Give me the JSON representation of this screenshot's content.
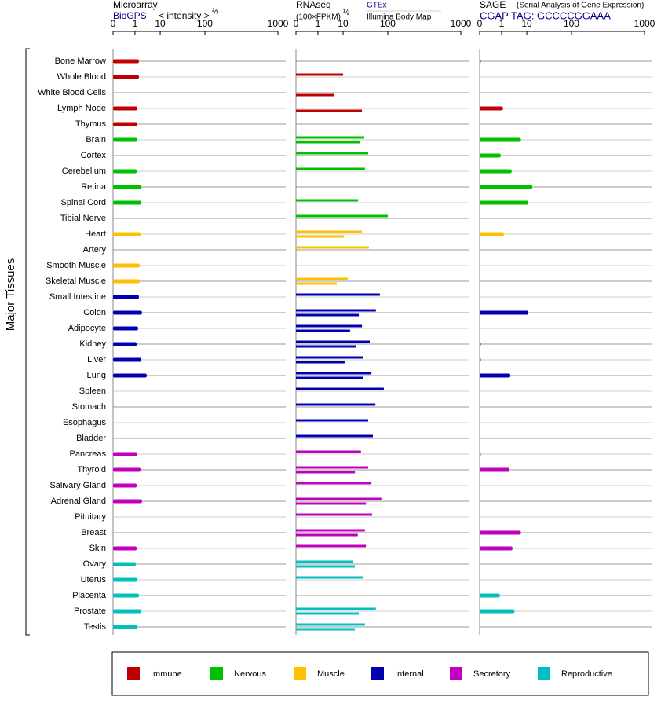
{
  "chart_data": [
    {
      "type": "bar",
      "title": "Microarray",
      "subtitle": "BioGPS",
      "axis_label": "< intensity >",
      "axis_exponent": "⅔",
      "y_axis_label": "Major Tissues",
      "categories": [
        "Bone Marrow",
        "Whole Blood",
        "White Blood Cells",
        "Lymph Node",
        "Thymus",
        "Brain",
        "Cortex",
        "Cerebellum",
        "Retina",
        "Spinal Cord",
        "Tibial Nerve",
        "Heart",
        "Artery",
        "Smooth Muscle",
        "Skeletal Muscle",
        "Small Intestine",
        "Colon",
        "Adipocyte",
        "Kidney",
        "Liver",
        "Lung",
        "Spleen",
        "Stomach",
        "Esophagus",
        "Bladder",
        "Pancreas",
        "Thyroid",
        "Salivary Gland",
        "Adrenal Gland",
        "Pituitary",
        "Breast",
        "Skin",
        "Ovary",
        "Uterus",
        "Placenta",
        "Prostate",
        "Testis"
      ],
      "category_colors": [
        "#c00000",
        "#c00000",
        "#c00000",
        "#c00000",
        "#c00000",
        "#00c000",
        "#00c000",
        "#00c000",
        "#00c000",
        "#00c000",
        "#00c000",
        "#ffc000",
        "#ffc000",
        "#ffc000",
        "#ffc000",
        "#0000b0",
        "#0000b0",
        "#0000b0",
        "#0000b0",
        "#0000b0",
        "#0000b0",
        "#0000b0",
        "#0000b0",
        "#0000b0",
        "#0000b0",
        "#bf00bf",
        "#bf00bf",
        "#bf00bf",
        "#bf00bf",
        "#bf00bf",
        "#bf00bf",
        "#bf00bf",
        "#00bfbf",
        "#00bfbf",
        "#00bfbf",
        "#00bfbf",
        "#00bfbf"
      ],
      "legend": [
        {
          "name": "Immune",
          "color": "#c00000"
        },
        {
          "name": "Nervous",
          "color": "#00c000"
        },
        {
          "name": "Muscle",
          "color": "#ffc000"
        },
        {
          "name": "Internal",
          "color": "#0000b0"
        },
        {
          "name": "Secretory",
          "color": "#bf00bf"
        },
        {
          "name": "Reproductive",
          "color": "#00bfbf"
        }
      ],
      "xlim": [
        0,
        1000
      ],
      "xticks": [
        0,
        1,
        10,
        100,
        1000
      ],
      "series": [
        {
          "values": [
            2.4,
            2.4,
            null,
            1.8,
            1.8,
            1.8,
            null,
            1.6,
            3.3,
            3.3,
            null,
            3.0,
            null,
            2.7,
            2.7,
            2.4,
            3.5,
            2.1,
            1.6,
            3.3,
            5.2,
            null,
            null,
            null,
            null,
            1.8,
            3.0,
            1.6,
            3.5,
            null,
            null,
            1.6,
            1.3,
            1.8,
            2.4,
            3.3,
            1.8
          ]
        }
      ]
    },
    {
      "type": "bar",
      "title": "RNAseq",
      "axis_label": "(100×FPKM)",
      "axis_exponent": "½",
      "xlim": [
        0,
        1000
      ],
      "xticks": [
        0,
        1,
        10,
        100,
        1000
      ],
      "series": [
        {
          "name": "GTEx",
          "values": [
            null,
            10,
            null,
            null,
            null,
            52.6,
            60.5,
            54,
            null,
            40,
            100,
            48,
            62,
            null,
            19.5,
            84,
            76,
            48,
            63.7,
            51,
            67,
            92,
            75,
            60.5,
            70,
            46,
            60.5,
            67,
            87,
            68.5,
            54,
            56,
            30.5,
            49.5,
            null,
            76,
            54
          ]
        },
        {
          "name": "Illumina Body Map",
          "values": [
            null,
            null,
            6.9,
            48,
            null,
            44.7,
            null,
            null,
            null,
            null,
            null,
            11.6,
            null,
            null,
            7.7,
            null,
            41.6,
            24,
            36.8,
            13,
            51,
            null,
            null,
            null,
            null,
            null,
            33.7,
            null,
            56,
            null,
            39.6,
            null,
            33.7,
            null,
            null,
            41.6,
            33.7
          ]
        }
      ]
    },
    {
      "type": "bar",
      "title": "SAGE",
      "subtitle": "(Serial Analysis of Gene Expression)",
      "axis_label": "CGAP TAG: GCCCCGGAAA",
      "xlim": [
        0,
        1000
      ],
      "xticks": [
        0,
        1,
        10,
        100,
        1000
      ],
      "series": [
        {
          "values": [
            0.05,
            null,
            null,
            1.5,
            null,
            7.9,
            0.96,
            4.6,
            21,
            13,
            null,
            1.8,
            null,
            null,
            0.03,
            null,
            13,
            null,
            0.05,
            0.05,
            4.1,
            null,
            null,
            null,
            null,
            0.05,
            3.8,
            null,
            null,
            null,
            7.9,
            4.9,
            null,
            null,
            0.92,
            5.6,
            null
          ]
        }
      ]
    }
  ]
}
